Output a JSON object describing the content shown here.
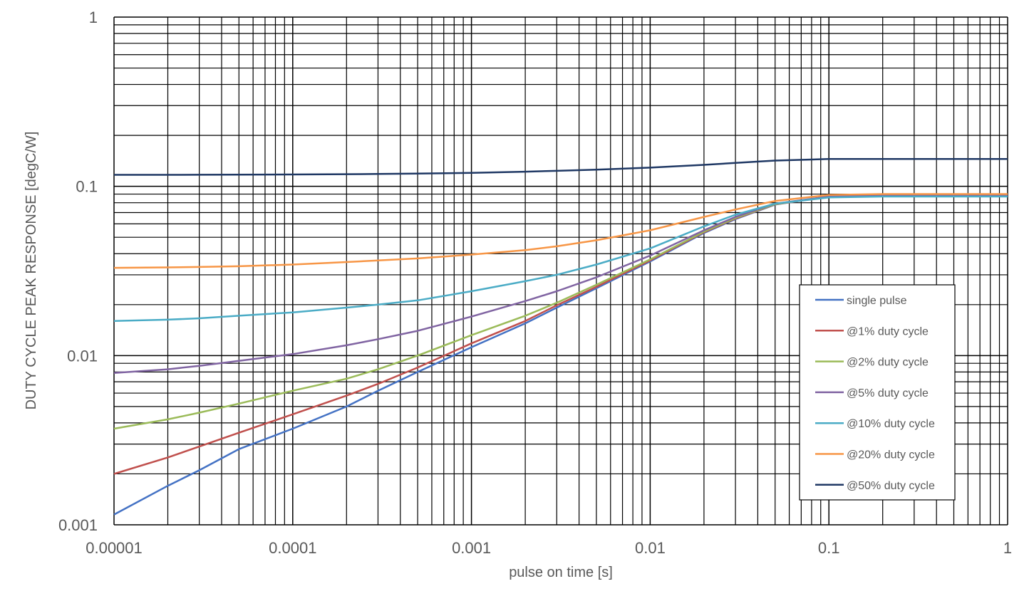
{
  "chart_data": {
    "type": "line",
    "x_scale": "log",
    "y_scale": "log",
    "xlabel": "pulse on time [s]",
    "ylabel": "DUTY CYCLE PEAK RESPONSE [degC/W]",
    "xlim": [
      1e-05,
      1
    ],
    "ylim": [
      0.001,
      1
    ],
    "x_ticks": [
      "0.00001",
      "0.0001",
      "0.001",
      "0.01",
      "0.1",
      "1"
    ],
    "y_ticks": [
      "0.001",
      "0.01",
      "0.1",
      "1"
    ],
    "grid": "major and minor",
    "legend_position": "right",
    "x": [
      1e-05,
      2e-05,
      3e-05,
      5e-05,
      0.0001,
      0.0002,
      0.0003,
      0.0005,
      0.001,
      0.002,
      0.003,
      0.005,
      0.01,
      0.02,
      0.03,
      0.05,
      0.1,
      0.2,
      0.5,
      1
    ],
    "series": [
      {
        "name": "single pulse",
        "color": "#4472C4",
        "values": [
          0.00115,
          0.0017,
          0.0021,
          0.0028,
          0.0037,
          0.005,
          0.0062,
          0.008,
          0.0112,
          0.0155,
          0.0192,
          0.025,
          0.036,
          0.053,
          0.064,
          0.078,
          0.087,
          0.089,
          0.089,
          0.089
        ]
      },
      {
        "name": "@1% duty cycle",
        "color": "#C0504D",
        "values": [
          0.002,
          0.0025,
          0.0029,
          0.0035,
          0.0045,
          0.0058,
          0.0068,
          0.0085,
          0.0118,
          0.016,
          0.0198,
          0.0255,
          0.0365,
          0.0535,
          0.0645,
          0.0782,
          0.087,
          0.089,
          0.089,
          0.089
        ]
      },
      {
        "name": "@2% duty cycle",
        "color": "#9BBB59",
        "values": [
          0.0037,
          0.0042,
          0.0046,
          0.0052,
          0.0062,
          0.0073,
          0.0083,
          0.01,
          0.0132,
          0.0172,
          0.0205,
          0.0262,
          0.037,
          0.054,
          0.065,
          0.0785,
          0.087,
          0.089,
          0.089,
          0.089
        ]
      },
      {
        "name": "@5% duty cycle",
        "color": "#8064A2",
        "values": [
          0.0079,
          0.0083,
          0.0087,
          0.0093,
          0.0102,
          0.0115,
          0.0125,
          0.014,
          0.017,
          0.021,
          0.024,
          0.029,
          0.039,
          0.055,
          0.066,
          0.079,
          0.087,
          0.089,
          0.089,
          0.089
        ]
      },
      {
        "name": "@10% duty cycle",
        "color": "#4BACC6",
        "values": [
          0.016,
          0.0163,
          0.0166,
          0.0172,
          0.018,
          0.0192,
          0.02,
          0.0212,
          0.024,
          0.0275,
          0.03,
          0.0345,
          0.043,
          0.058,
          0.068,
          0.079,
          0.086,
          0.087,
          0.087,
          0.087
        ]
      },
      {
        "name": "@20% duty cycle",
        "color": "#F79646",
        "values": [
          0.033,
          0.0332,
          0.0334,
          0.0337,
          0.0345,
          0.0357,
          0.0365,
          0.0375,
          0.0395,
          0.042,
          0.0442,
          0.048,
          0.055,
          0.066,
          0.073,
          0.082,
          0.089,
          0.09,
          0.09,
          0.09
        ]
      },
      {
        "name": "@50% duty cycle",
        "color": "#1F3864",
        "values": [
          0.117,
          0.117,
          0.1171,
          0.1172,
          0.1175,
          0.118,
          0.1183,
          0.119,
          0.12,
          0.122,
          0.1235,
          0.1255,
          0.129,
          0.134,
          0.1375,
          0.142,
          0.145,
          0.145,
          0.145,
          0.145
        ]
      }
    ]
  }
}
